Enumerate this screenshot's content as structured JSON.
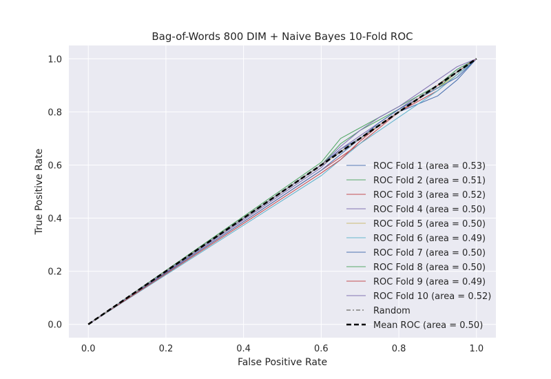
{
  "chart_data": {
    "type": "line",
    "title": "Bag-of-Words 800 DIM + Naive Bayes 10-Fold ROC",
    "xlabel": "False Positive Rate",
    "ylabel": "True Positive Rate",
    "xlim": [
      -0.05,
      1.05
    ],
    "ylim": [
      -0.05,
      1.05
    ],
    "xticks": [
      0.0,
      0.2,
      0.4,
      0.6,
      0.8,
      1.0
    ],
    "yticks": [
      0.0,
      0.2,
      0.4,
      0.6,
      0.8,
      1.0
    ],
    "xtick_labels": [
      "0.0",
      "0.2",
      "0.4",
      "0.6",
      "0.8",
      "1.0"
    ],
    "ytick_labels": [
      "0.0",
      "0.2",
      "0.4",
      "0.6",
      "0.8",
      "1.0"
    ],
    "grid": true,
    "legend_position": "lower-right",
    "background": "#eaeaf2",
    "series": [
      {
        "name": "ROC Fold 1 (area = 0.53)",
        "color": "#4c72b0",
        "dash": "solid",
        "x": [
          0.0,
          0.6,
          0.65,
          0.7,
          0.75,
          0.8,
          0.85,
          0.9,
          0.95,
          1.0
        ],
        "y": [
          0.0,
          0.6,
          0.66,
          0.7,
          0.75,
          0.8,
          0.83,
          0.86,
          0.92,
          1.0
        ]
      },
      {
        "name": "ROC Fold 2 (area = 0.51)",
        "color": "#55a868",
        "dash": "solid",
        "x": [
          0.0,
          0.6,
          0.65,
          0.7,
          0.75,
          0.8,
          0.85,
          0.9,
          0.95,
          1.0
        ],
        "y": [
          0.0,
          0.6,
          0.68,
          0.73,
          0.77,
          0.81,
          0.85,
          0.89,
          0.95,
          1.0
        ]
      },
      {
        "name": "ROC Fold 3 (area = 0.52)",
        "color": "#c44e52",
        "dash": "solid",
        "x": [
          0.0,
          0.6,
          0.65,
          0.7,
          0.75,
          0.8,
          0.85,
          0.9,
          0.95,
          1.0
        ],
        "y": [
          0.0,
          0.58,
          0.63,
          0.68,
          0.74,
          0.8,
          0.84,
          0.88,
          0.94,
          1.0
        ]
      },
      {
        "name": "ROC Fold 4 (area = 0.50)",
        "color": "#8172b2",
        "dash": "solid",
        "x": [
          0.0,
          0.6,
          0.65,
          0.7,
          0.75,
          0.8,
          0.85,
          0.9,
          0.95,
          1.0
        ],
        "y": [
          0.0,
          0.59,
          0.66,
          0.71,
          0.76,
          0.81,
          0.86,
          0.9,
          0.96,
          1.0
        ]
      },
      {
        "name": "ROC Fold 5 (area = 0.50)",
        "color": "#ccb974",
        "dash": "solid",
        "x": [
          0.0,
          0.6,
          0.65,
          0.7,
          0.75,
          0.8,
          0.85,
          0.9,
          0.95,
          1.0
        ],
        "y": [
          0.0,
          0.6,
          0.65,
          0.7,
          0.75,
          0.8,
          0.85,
          0.89,
          0.94,
          1.0
        ]
      },
      {
        "name": "ROC Fold 6 (area = 0.49)",
        "color": "#64b5cd",
        "dash": "solid",
        "x": [
          0.0,
          0.6,
          0.65,
          0.7,
          0.75,
          0.8,
          0.85,
          0.9,
          0.95,
          1.0
        ],
        "y": [
          0.0,
          0.56,
          0.62,
          0.68,
          0.73,
          0.78,
          0.83,
          0.88,
          0.94,
          1.0
        ]
      },
      {
        "name": "ROC Fold 7 (area = 0.50)",
        "color": "#4c72b0",
        "dash": "solid",
        "x": [
          0.0,
          0.6,
          0.65,
          0.7,
          0.75,
          0.8,
          0.85,
          0.9,
          0.95,
          1.0
        ],
        "y": [
          0.0,
          0.58,
          0.64,
          0.7,
          0.76,
          0.81,
          0.85,
          0.89,
          0.93,
          1.0
        ]
      },
      {
        "name": "ROC Fold 8 (area = 0.50)",
        "color": "#55a868",
        "dash": "solid",
        "x": [
          0.0,
          0.6,
          0.65,
          0.7,
          0.75,
          0.8,
          0.85,
          0.9,
          0.95,
          1.0
        ],
        "y": [
          0.0,
          0.61,
          0.7,
          0.74,
          0.78,
          0.82,
          0.86,
          0.9,
          0.96,
          1.0
        ]
      },
      {
        "name": "ROC Fold 9 (area = 0.49)",
        "color": "#c44e52",
        "dash": "solid",
        "x": [
          0.0,
          0.6,
          0.65,
          0.7,
          0.75,
          0.8,
          0.85,
          0.9,
          0.95,
          1.0
        ],
        "y": [
          0.0,
          0.57,
          0.62,
          0.69,
          0.75,
          0.8,
          0.85,
          0.9,
          0.95,
          1.0
        ]
      },
      {
        "name": "ROC Fold 10 (area = 0.52)",
        "color": "#8172b2",
        "dash": "solid",
        "x": [
          0.0,
          0.6,
          0.65,
          0.7,
          0.75,
          0.8,
          0.85,
          0.9,
          0.95,
          1.0
        ],
        "y": [
          0.0,
          0.6,
          0.67,
          0.73,
          0.78,
          0.82,
          0.87,
          0.92,
          0.97,
          1.0
        ]
      },
      {
        "name": "Random",
        "color": "#999999",
        "dash": "dashdot",
        "x": [
          0.0,
          1.0
        ],
        "y": [
          0.0,
          1.0
        ]
      },
      {
        "name": "Mean ROC (area = 0.50)",
        "color": "#000000",
        "dash": "dashed",
        "x": [
          0.0,
          0.2,
          0.4,
          0.6,
          0.7,
          0.8,
          0.9,
          1.0
        ],
        "y": [
          0.0,
          0.2,
          0.4,
          0.6,
          0.7,
          0.8,
          0.9,
          1.0
        ]
      }
    ]
  }
}
